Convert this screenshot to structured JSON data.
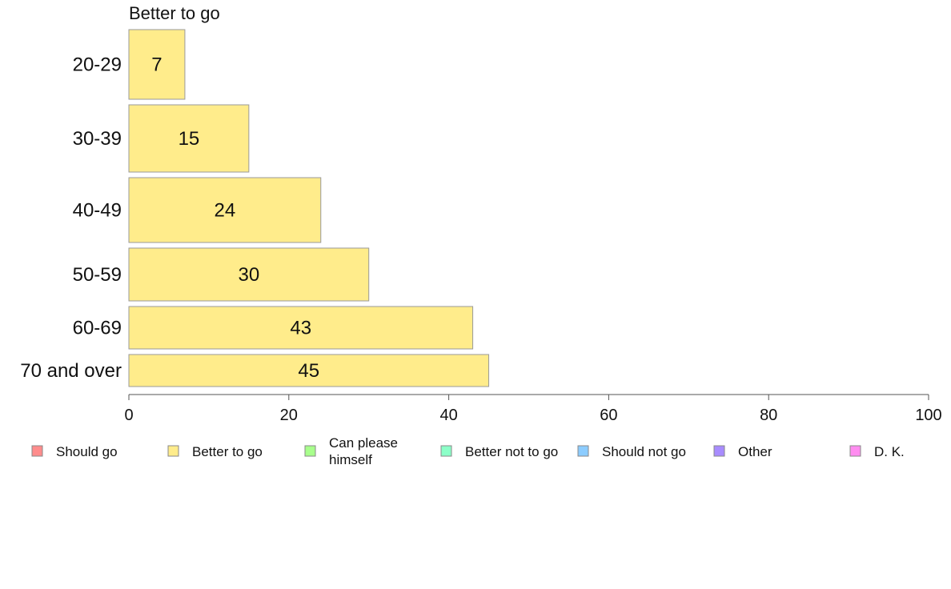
{
  "chart_data": {
    "type": "bar",
    "orientation": "horizontal",
    "title": "Better to go",
    "categories": [
      "20-29",
      "30-39",
      "40-49",
      "50-59",
      "60-69",
      "70 and over"
    ],
    "series": [
      {
        "name": "Better to go",
        "values": [
          7,
          15,
          24,
          30,
          43,
          45
        ],
        "color": "#ffec8b"
      }
    ],
    "xlim": [
      0,
      100
    ],
    "xticks": [
      0,
      20,
      40,
      60,
      80,
      100
    ],
    "grid": false,
    "legend": {
      "placement": "bottom",
      "entries": [
        {
          "label": "Should go",
          "color": "#ff8c8c"
        },
        {
          "label": "Better to go",
          "color": "#ffec8b"
        },
        {
          "label": "Can please himself",
          "color": "#a8ff8c"
        },
        {
          "label": "Better not to go",
          "color": "#8cffc8"
        },
        {
          "label": "Should not go",
          "color": "#8cccff"
        },
        {
          "label": "Other",
          "color": "#a88cff"
        },
        {
          "label": "D. K.",
          "color": "#ff8cf0"
        }
      ]
    }
  }
}
